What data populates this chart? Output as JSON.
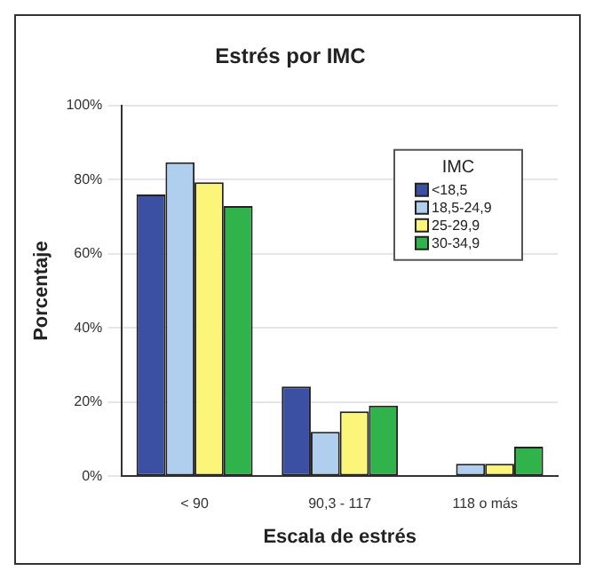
{
  "chart_data": {
    "type": "bar",
    "title": "Estrés por IMC",
    "xlabel": "Escala de estrés",
    "ylabel": "Porcentaje",
    "legend_title": "IMC",
    "categories": [
      "< 90",
      "90,3 - 117",
      "118 o más"
    ],
    "series": [
      {
        "name": "<18,5",
        "color": "#3b4fa3",
        "values": [
          76,
          24.2,
          0
        ]
      },
      {
        "name": "18,5-24,9",
        "color": "#b0cfee",
        "values": [
          84.7,
          12,
          3.4
        ]
      },
      {
        "name": "25-29,9",
        "color": "#fbf57a",
        "values": [
          79.3,
          17.5,
          3.4
        ]
      },
      {
        "name": "30-34,9",
        "color": "#2fb34a",
        "values": [
          72.9,
          19.1,
          8
        ]
      }
    ],
    "ylim": [
      0,
      100
    ],
    "yticks": [
      {
        "value": 0,
        "label": "0%"
      },
      {
        "value": 20,
        "label": "20%"
      },
      {
        "value": 40,
        "label": "40%"
      },
      {
        "value": 60,
        "label": "60%"
      },
      {
        "value": 80,
        "label": "80%"
      },
      {
        "value": 100,
        "label": "100%"
      }
    ],
    "grid": "y",
    "legend": "top right"
  }
}
